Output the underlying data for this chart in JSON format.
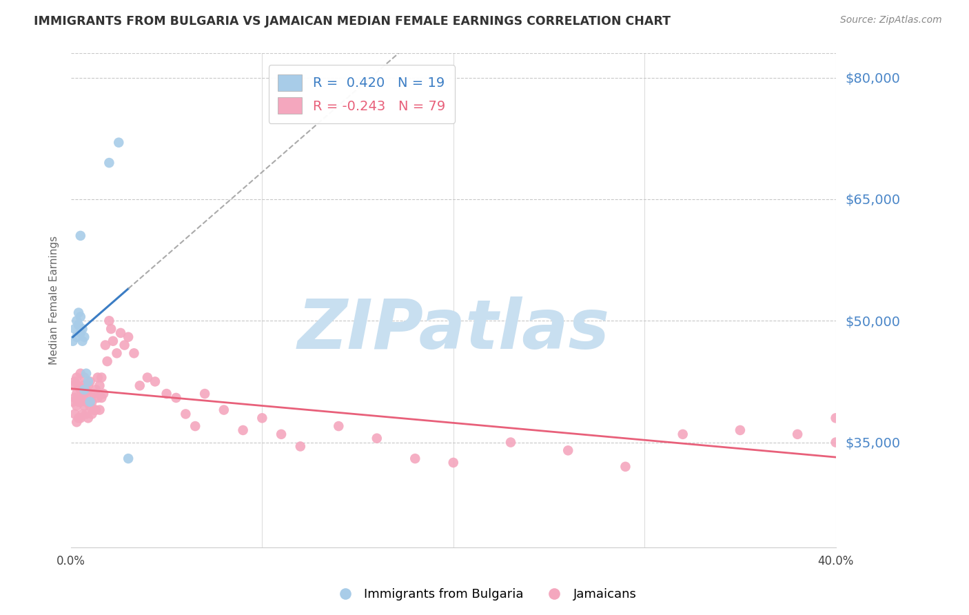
{
  "title": "IMMIGRANTS FROM BULGARIA VS JAMAICAN MEDIAN FEMALE EARNINGS CORRELATION CHART",
  "source": "Source: ZipAtlas.com",
  "ylabel": "Median Female Earnings",
  "y_ticks": [
    35000,
    50000,
    65000,
    80000
  ],
  "y_tick_labels": [
    "$35,000",
    "$50,000",
    "$65,000",
    "$80,000"
  ],
  "x_min": 0.0,
  "x_max": 0.4,
  "y_min": 22000,
  "y_max": 83000,
  "legend_r1": "R =  0.420   N = 19",
  "legend_r2": "R = -0.243   N = 79",
  "legend_label1": "Immigrants from Bulgaria",
  "legend_label2": "Jamaicans",
  "blue_color": "#a8cce8",
  "pink_color": "#f4a7be",
  "blue_line_color": "#3b7dc4",
  "pink_line_color": "#e8607a",
  "grid_color": "#c8c8c8",
  "title_color": "#333333",
  "axis_label_color": "#4a86c8",
  "watermark_color": "#c8dff0",
  "watermark_text": "ZIPatlas",
  "bulgaria_x": [
    0.001,
    0.002,
    0.003,
    0.003,
    0.004,
    0.004,
    0.005,
    0.005,
    0.005,
    0.006,
    0.006,
    0.007,
    0.007,
    0.008,
    0.009,
    0.01,
    0.02,
    0.025,
    0.03
  ],
  "bulgaria_y": [
    47500,
    49000,
    48000,
    50000,
    51000,
    49500,
    50500,
    48500,
    60500,
    49000,
    47500,
    48000,
    41500,
    43500,
    42500,
    40000,
    69500,
    72000,
    33000
  ],
  "jamaica_x": [
    0.001,
    0.001,
    0.002,
    0.002,
    0.002,
    0.003,
    0.003,
    0.003,
    0.003,
    0.004,
    0.004,
    0.004,
    0.005,
    0.005,
    0.005,
    0.005,
    0.006,
    0.006,
    0.006,
    0.007,
    0.007,
    0.007,
    0.008,
    0.008,
    0.008,
    0.009,
    0.009,
    0.009,
    0.01,
    0.01,
    0.01,
    0.011,
    0.011,
    0.012,
    0.012,
    0.013,
    0.013,
    0.014,
    0.014,
    0.015,
    0.015,
    0.016,
    0.016,
    0.017,
    0.018,
    0.019,
    0.02,
    0.021,
    0.022,
    0.024,
    0.026,
    0.028,
    0.03,
    0.033,
    0.036,
    0.04,
    0.044,
    0.05,
    0.055,
    0.06,
    0.065,
    0.07,
    0.08,
    0.09,
    0.1,
    0.11,
    0.12,
    0.14,
    0.16,
    0.18,
    0.2,
    0.23,
    0.26,
    0.29,
    0.32,
    0.35,
    0.38,
    0.4,
    0.4
  ],
  "jamaica_y": [
    42000,
    40000,
    42500,
    40500,
    38500,
    43000,
    41000,
    39500,
    37500,
    42000,
    40000,
    38000,
    43500,
    41500,
    40000,
    38000,
    42000,
    40500,
    38500,
    41000,
    39500,
    43000,
    41500,
    40000,
    38500,
    42000,
    40000,
    38000,
    42500,
    41000,
    39500,
    40000,
    38500,
    41000,
    39000,
    41500,
    39000,
    43000,
    40500,
    42000,
    39000,
    43000,
    40500,
    41000,
    47000,
    45000,
    50000,
    49000,
    47500,
    46000,
    48500,
    47000,
    48000,
    46000,
    42000,
    43000,
    42500,
    41000,
    40500,
    38500,
    37000,
    41000,
    39000,
    36500,
    38000,
    36000,
    34500,
    37000,
    35500,
    33000,
    32500,
    35000,
    34000,
    32000,
    36000,
    36500,
    36000,
    38000,
    35000
  ]
}
